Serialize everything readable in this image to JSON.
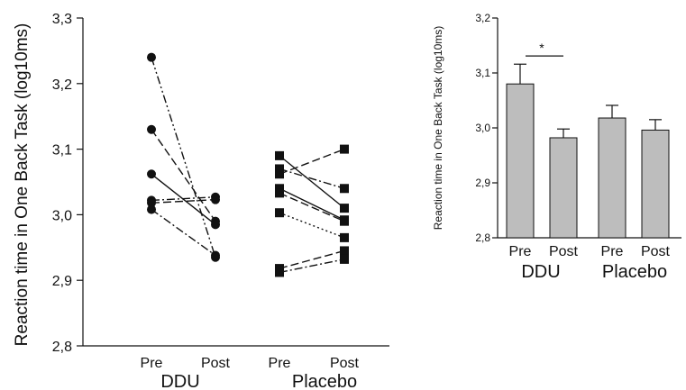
{
  "chart_data": [
    {
      "type": "line",
      "ylabel": "Reaction time in One Back Task (log10ms)",
      "ylim": [
        2.8,
        3.3
      ],
      "y_ticks": [
        "2,8",
        "2,9",
        "3,0",
        "3,1",
        "3,2",
        "3,3"
      ],
      "groups": [
        {
          "name": "DDU",
          "categories": [
            "Pre",
            "Post"
          ],
          "marker": "circle",
          "series": [
            {
              "pre": 3.24,
              "post": 2.935,
              "dash": "dash-dot-dot"
            },
            {
              "pre": 3.13,
              "post": 2.99,
              "dash": "dash"
            },
            {
              "pre": 3.062,
              "post": 2.985,
              "dash": "solid"
            },
            {
              "pre": 3.022,
              "post": 3.027,
              "dash": "dash-dot"
            },
            {
              "pre": 3.018,
              "post": 3.023,
              "dash": "dash"
            },
            {
              "pre": 3.008,
              "post": 2.938,
              "dash": "dash-dot"
            }
          ]
        },
        {
          "name": "Placebo",
          "categories": [
            "Pre",
            "Post"
          ],
          "marker": "square",
          "series": [
            {
              "pre": 3.09,
              "post": 3.01,
              "dash": "solid"
            },
            {
              "pre": 3.07,
              "post": 3.04,
              "dash": "dash-dot"
            },
            {
              "pre": 3.062,
              "post": 3.1,
              "dash": "dash"
            },
            {
              "pre": 3.04,
              "post": 2.992,
              "dash": "solid"
            },
            {
              "pre": 3.033,
              "post": 2.99,
              "dash": "dash"
            },
            {
              "pre": 3.003,
              "post": 2.965,
              "dash": "dotted"
            },
            {
              "pre": 2.918,
              "post": 2.945,
              "dash": "dash"
            },
            {
              "pre": 2.912,
              "post": 2.932,
              "dash": "dash-dot"
            }
          ]
        }
      ]
    },
    {
      "type": "bar",
      "ylabel": "Reaction time in One Back Task (log10ms)",
      "ylim": [
        2.8,
        3.2
      ],
      "y_ticks": [
        "2,8",
        "2,9",
        "3,0",
        "3,1",
        "3,2"
      ],
      "groups": [
        "DDU",
        "Placebo"
      ],
      "categories": [
        "Pre",
        "Post",
        "Pre",
        "Post"
      ],
      "values": [
        3.08,
        2.982,
        3.018,
        2.996
      ],
      "errors": [
        0.036,
        0.016,
        0.023,
        0.019
      ],
      "bar_color": "#bdbdbd",
      "significance": [
        {
          "from": 0,
          "to": 1,
          "label": "*"
        }
      ]
    }
  ]
}
